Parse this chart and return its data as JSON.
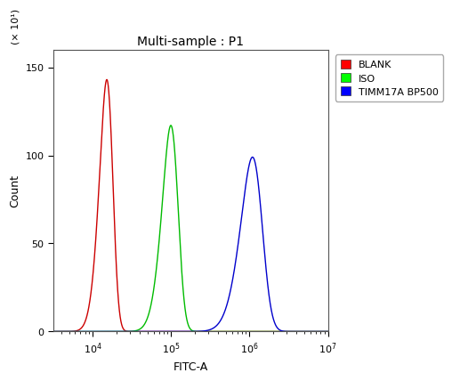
{
  "title": "Multi-sample : P1",
  "xlabel": "FITC-A",
  "ylabel": "Count",
  "y_label_multiplier": "(× 10¹)",
  "ylim": [
    0,
    160
  ],
  "yticks": [
    0,
    50,
    100,
    150
  ],
  "xlim": [
    3162,
    10000000
  ],
  "background_color": "#ffffff",
  "plot_bg_color": "#ffffff",
  "curves": [
    {
      "label": "BLANK",
      "color": "#cc0000",
      "mu_log10": 4.25,
      "sigma_log10": 0.13,
      "peak": 143,
      "skew": -2.0
    },
    {
      "label": "ISO",
      "color": "#00bb00",
      "mu_log10": 5.08,
      "sigma_log10": 0.155,
      "peak": 117,
      "skew": -2.0
    },
    {
      "label": "TIMM17A BP500",
      "color": "#0000cc",
      "mu_log10": 6.15,
      "sigma_log10": 0.21,
      "peak": 99,
      "skew": -2.0
    }
  ],
  "legend_colors": [
    "#ff0000",
    "#00ff00",
    "#0000ff"
  ],
  "legend_labels": [
    "BLANK",
    "ISO",
    "TIMM17A BP500"
  ],
  "title_fontsize": 10,
  "axis_fontsize": 9,
  "legend_fontsize": 8,
  "tick_fontsize": 8
}
